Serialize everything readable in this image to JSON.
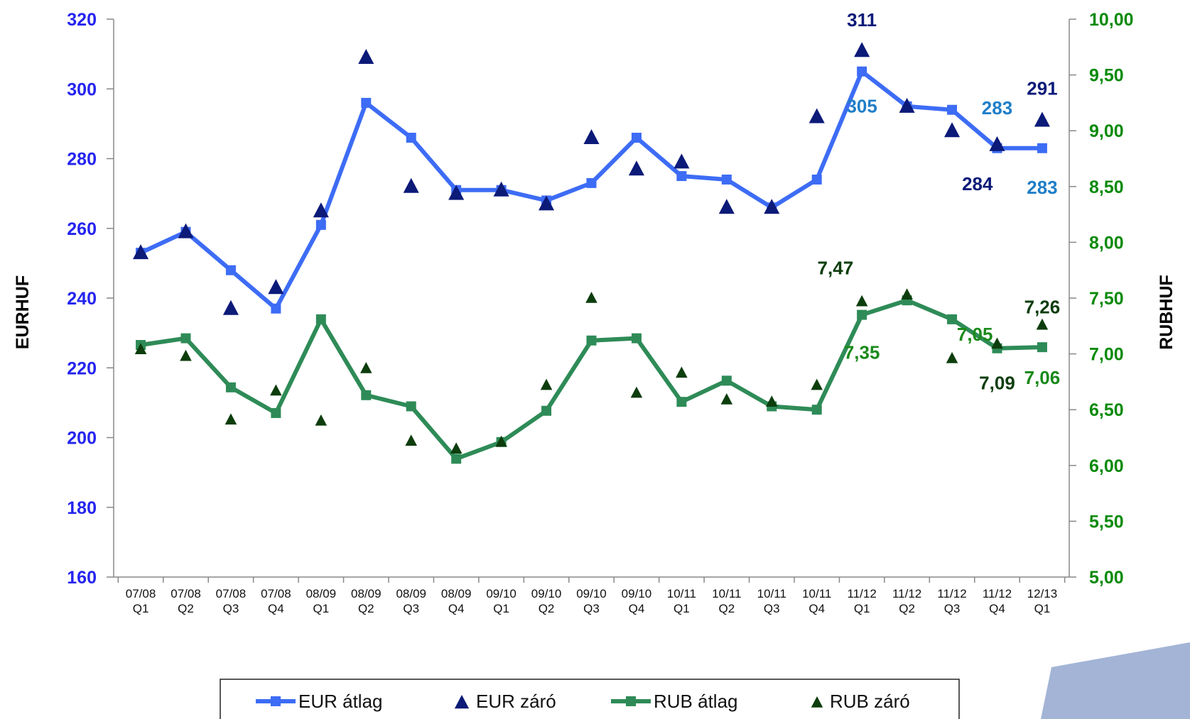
{
  "chart_data": {
    "type": "line",
    "categories": [
      "07/08 Q1",
      "07/08 Q2",
      "07/08 Q3",
      "07/08 Q4",
      "08/09 Q1",
      "08/09 Q2",
      "08/09 Q3",
      "08/09 Q4",
      "09/10 Q1",
      "09/10 Q2",
      "09/10 Q3",
      "09/10 Q4",
      "10/11 Q1",
      "10/11 Q2",
      "10/11 Q3",
      "10/11 Q4",
      "11/12 Q1",
      "11/12 Q2",
      "11/12 Q3",
      "11/12 Q4",
      "12/13 Q1"
    ],
    "category_lines": [
      [
        "07/08",
        "Q1"
      ],
      [
        "07/08",
        "Q2"
      ],
      [
        "07/08",
        "Q3"
      ],
      [
        "07/08",
        "Q4"
      ],
      [
        "08/09",
        "Q1"
      ],
      [
        "08/09",
        "Q2"
      ],
      [
        "08/09",
        "Q3"
      ],
      [
        "08/09",
        "Q4"
      ],
      [
        "09/10",
        "Q1"
      ],
      [
        "09/10",
        "Q2"
      ],
      [
        "09/10",
        "Q3"
      ],
      [
        "09/10",
        "Q4"
      ],
      [
        "10/11",
        "Q1"
      ],
      [
        "10/11",
        "Q2"
      ],
      [
        "10/11",
        "Q3"
      ],
      [
        "10/11",
        "Q4"
      ],
      [
        "11/12",
        "Q1"
      ],
      [
        "11/12",
        "Q2"
      ],
      [
        "11/12",
        "Q3"
      ],
      [
        "11/12",
        "Q4"
      ],
      [
        "12/13",
        "Q1"
      ]
    ],
    "ylabel_left": "EURHUF",
    "ylabel_right": "RUBHUF",
    "ylim_left": [
      160,
      320
    ],
    "ylim_right": [
      5.0,
      10.0
    ],
    "yticks_left": [
      "160",
      "180",
      "200",
      "220",
      "240",
      "260",
      "280",
      "300",
      "320"
    ],
    "yticks_right": [
      "5,00",
      "5,50",
      "6,00",
      "6,50",
      "7,00",
      "7,50",
      "8,00",
      "8,50",
      "9,00",
      "9,50",
      "10,00"
    ],
    "grid": false,
    "legend_position": "bottom",
    "series": [
      {
        "name": "EUR átlag",
        "axis": "left",
        "style": "line-square",
        "color": "#3d6cf5",
        "values": [
          253,
          259,
          248,
          237,
          261,
          296,
          286,
          271,
          271,
          268,
          273,
          286,
          275,
          274,
          266,
          274,
          305,
          295,
          294,
          283,
          283
        ]
      },
      {
        "name": "EUR záró",
        "axis": "left",
        "style": "triangle",
        "color": "#0c1a78",
        "values": [
          253,
          259,
          237,
          243,
          265,
          309,
          272,
          270,
          271,
          267,
          286,
          277,
          279,
          266,
          266,
          292,
          311,
          295,
          288,
          284,
          291
        ]
      },
      {
        "name": "RUB átlag",
        "axis": "right",
        "style": "line-square",
        "color": "#2e8b57",
        "values": [
          7.08,
          7.14,
          6.7,
          6.47,
          7.31,
          6.63,
          6.53,
          6.06,
          6.21,
          6.49,
          7.12,
          7.14,
          6.57,
          6.76,
          6.53,
          6.5,
          7.35,
          7.48,
          7.31,
          7.05,
          7.06
        ]
      },
      {
        "name": "RUB záró",
        "axis": "right",
        "style": "triangle",
        "color": "#0d3d0d",
        "values": [
          7.04,
          6.98,
          6.41,
          6.67,
          6.4,
          6.87,
          6.22,
          6.15,
          6.21,
          6.72,
          7.5,
          6.65,
          6.83,
          6.59,
          6.57,
          6.72,
          7.47,
          7.53,
          6.96,
          7.09,
          7.26
        ]
      }
    ],
    "annotations": [
      {
        "text": "311",
        "color": "#0c1a78"
      },
      {
        "text": "305",
        "color": "#1f7ec8"
      },
      {
        "text": "283",
        "color": "#1f7ec8"
      },
      {
        "text": "291",
        "color": "#0c1a78"
      },
      {
        "text": "284",
        "color": "#0c1a78"
      },
      {
        "text": "283",
        "color": "#1f7ec8"
      },
      {
        "text": "7,47",
        "color": "#0d3d0d"
      },
      {
        "text": "7,35",
        "color": "#1a8a1a"
      },
      {
        "text": "7,05",
        "color": "#1a8a1a"
      },
      {
        "text": "7,26",
        "color": "#0d3d0d"
      },
      {
        "text": "7,09",
        "color": "#0d3d0d"
      },
      {
        "text": "7,06",
        "color": "#1a8a1a"
      }
    ],
    "colors": {
      "left_axis": "#2424f0",
      "right_axis": "#0a8a0a",
      "decor": "#a3b4d6"
    }
  }
}
